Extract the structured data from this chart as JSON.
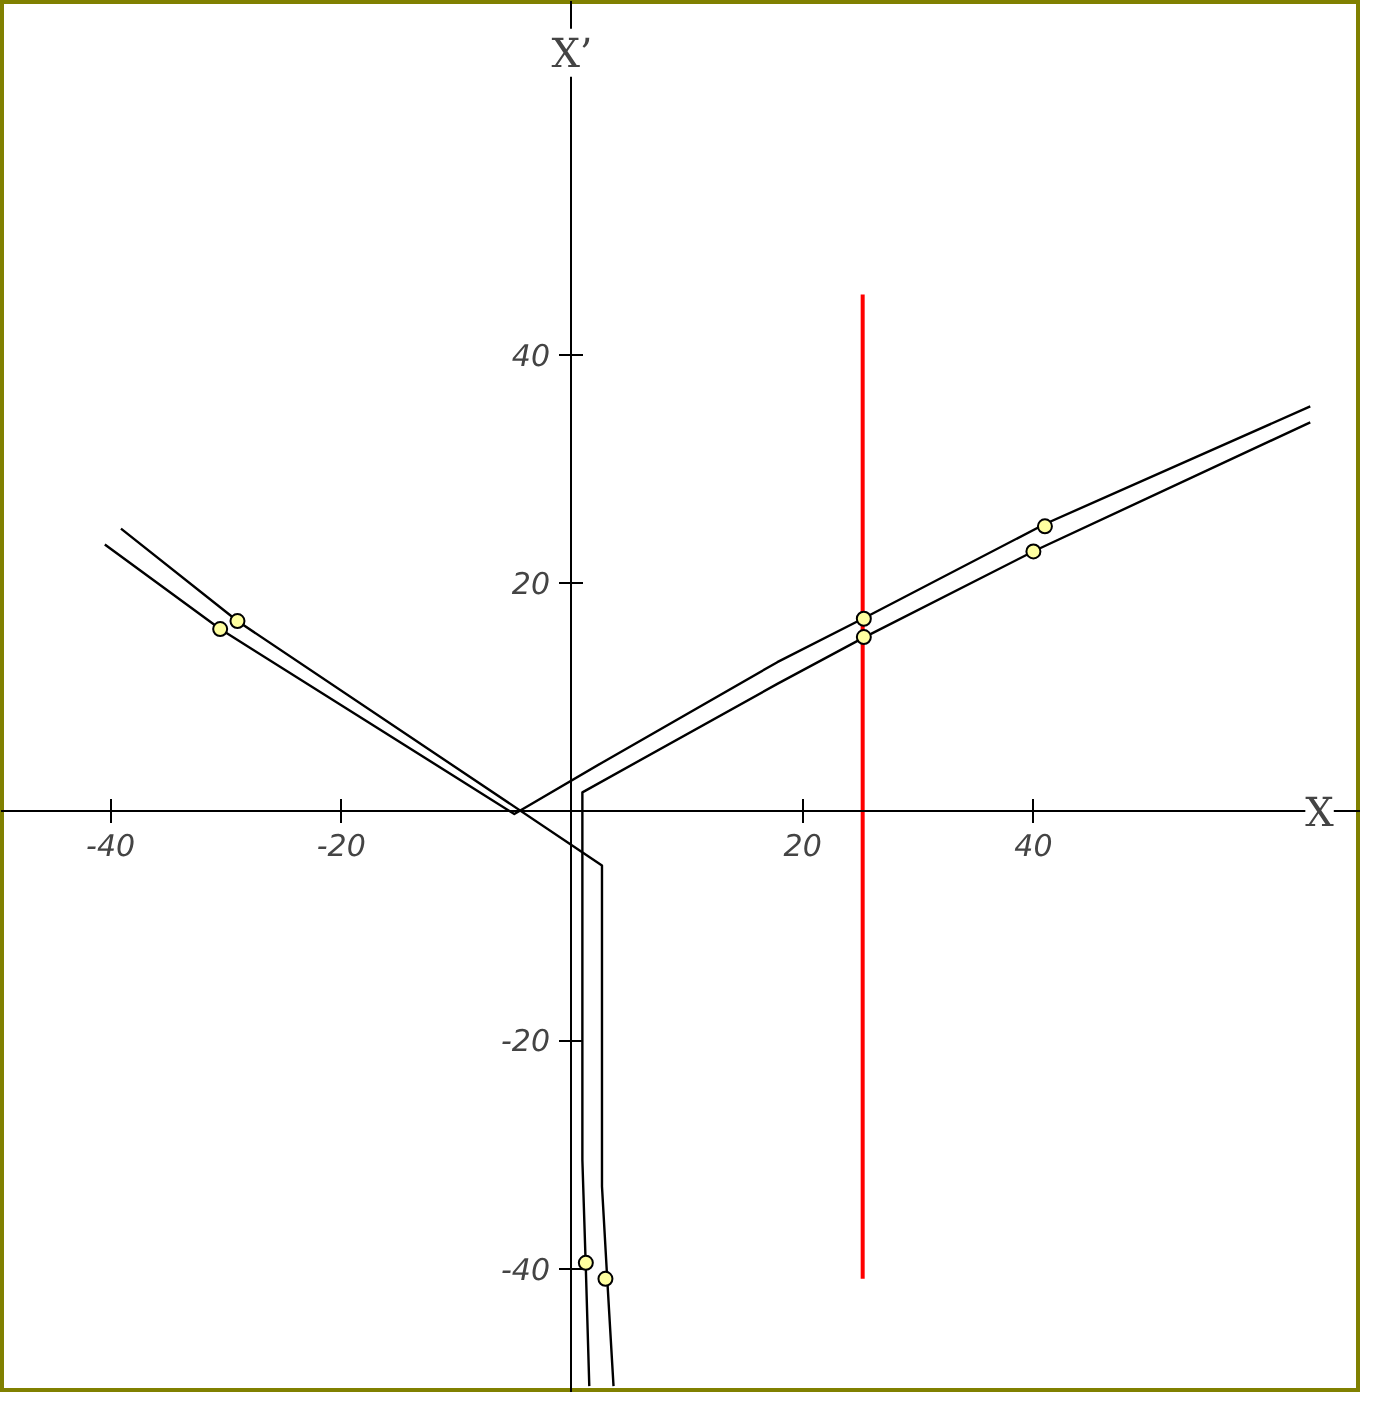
{
  "chart_data": {
    "type": "line",
    "xlabel": "X",
    "ylabel": "X’",
    "xlim": [
      -49.5,
      68.4
    ],
    "ylim": [
      -50.9,
      71
    ],
    "xticks": [
      -40,
      -20,
      20,
      40
    ],
    "yticks": [
      -40,
      -20,
      20,
      40
    ],
    "grid": false,
    "marker": "none",
    "series": [
      {
        "color": "#000000",
        "x": [
          -39.1,
          -29.0,
          2.6,
          2.6,
          3.1,
          3.6
        ],
        "values": [
          24.8,
          16.7,
          -4.7,
          -32.8,
          -41.7,
          -50.3
        ]
      },
      {
        "color": "#000000",
        "x": [
          -40.5,
          -30.5,
          -5.0,
          2.6,
          17.8,
          25.2,
          41.0,
          64.0
        ],
        "values": [
          23.4,
          16.0,
          -0.2,
          4.3,
          13.1,
          16.9,
          25.2,
          35.5
        ]
      },
      {
        "color": "#000000",
        "x": [
          64.0,
          40.2,
          25.2,
          17.8,
          0.9,
          0.9,
          1.2,
          1.5
        ],
        "values": [
          34.1,
          22.9,
          15.2,
          11.2,
          1.7,
          -30.5,
          -40.0,
          -50.3
        ]
      },
      {
        "color": "#ff0000",
        "x": [
          25.2,
          25.2
        ],
        "values": [
          45.3,
          -40.9
        ]
      },
      {
        "type": "scatter",
        "marker": "circle",
        "color": "#ffffa0",
        "x": [
          -30.5,
          -29.0,
          25.3,
          25.3,
          41.0,
          40.0,
          1.2,
          2.9
        ],
        "values": [
          16.0,
          16.7,
          16.9,
          15.3,
          25.0,
          22.8,
          -39.5,
          -40.9
        ]
      }
    ]
  }
}
